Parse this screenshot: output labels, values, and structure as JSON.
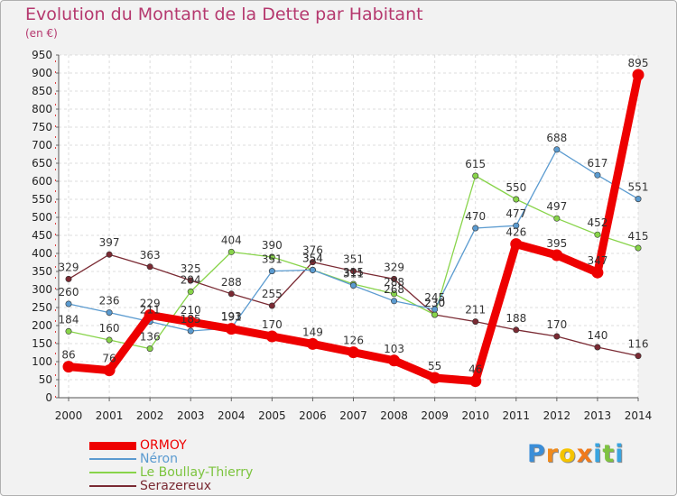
{
  "chart_data": {
    "type": "line",
    "title": "Evolution du Montant de la Dette par Habitant",
    "subtitle": "(en €)",
    "x": [
      2000,
      2001,
      2002,
      2003,
      2004,
      2005,
      2006,
      2007,
      2008,
      2009,
      2010,
      2011,
      2012,
      2013,
      2014
    ],
    "ylim": [
      0,
      950
    ],
    "ytick_step": 50,
    "grid": true,
    "legend_position": "bottom-left",
    "series": [
      {
        "name": "Serazereux",
        "color": "#7a2a33",
        "width": 1.3,
        "values": [
          329,
          397,
          363,
          325,
          288,
          255,
          376,
          351,
          329,
          230,
          211,
          188,
          170,
          140,
          116
        ]
      },
      {
        "name": "Le Boullay-Thierry",
        "color": "#88d44a",
        "width": 1.3,
        "values": [
          184,
          160,
          136,
          294,
          404,
          390,
          354,
          315,
          288,
          230,
          615,
          550,
          497,
          452,
          415
        ]
      },
      {
        "name": "Néron",
        "color": "#5b9bd0",
        "width": 1.3,
        "values": [
          260,
          236,
          211,
          185,
          193,
          351,
          354,
          311,
          268,
          245,
          470,
          477,
          688,
          617,
          551
        ]
      },
      {
        "name": "ORMOY",
        "color": "#ee0000",
        "width": 9,
        "values": [
          86,
          76,
          229,
          210,
          191,
          170,
          149,
          126,
          103,
          55,
          46,
          426,
          395,
          347,
          895
        ]
      }
    ],
    "legend_order": [
      "ORMOY",
      "Néron",
      "Le Boullay-Thierry",
      "Serazereux"
    ]
  },
  "logo": {
    "letters": [
      "P",
      "r",
      "o",
      "x",
      "i",
      "t",
      "i"
    ],
    "colors": [
      "#3b8ed8",
      "#f08a1c",
      "#f5c400",
      "#f07a1c",
      "#39a4e0",
      "#7fc241",
      "#39a4e0"
    ]
  }
}
